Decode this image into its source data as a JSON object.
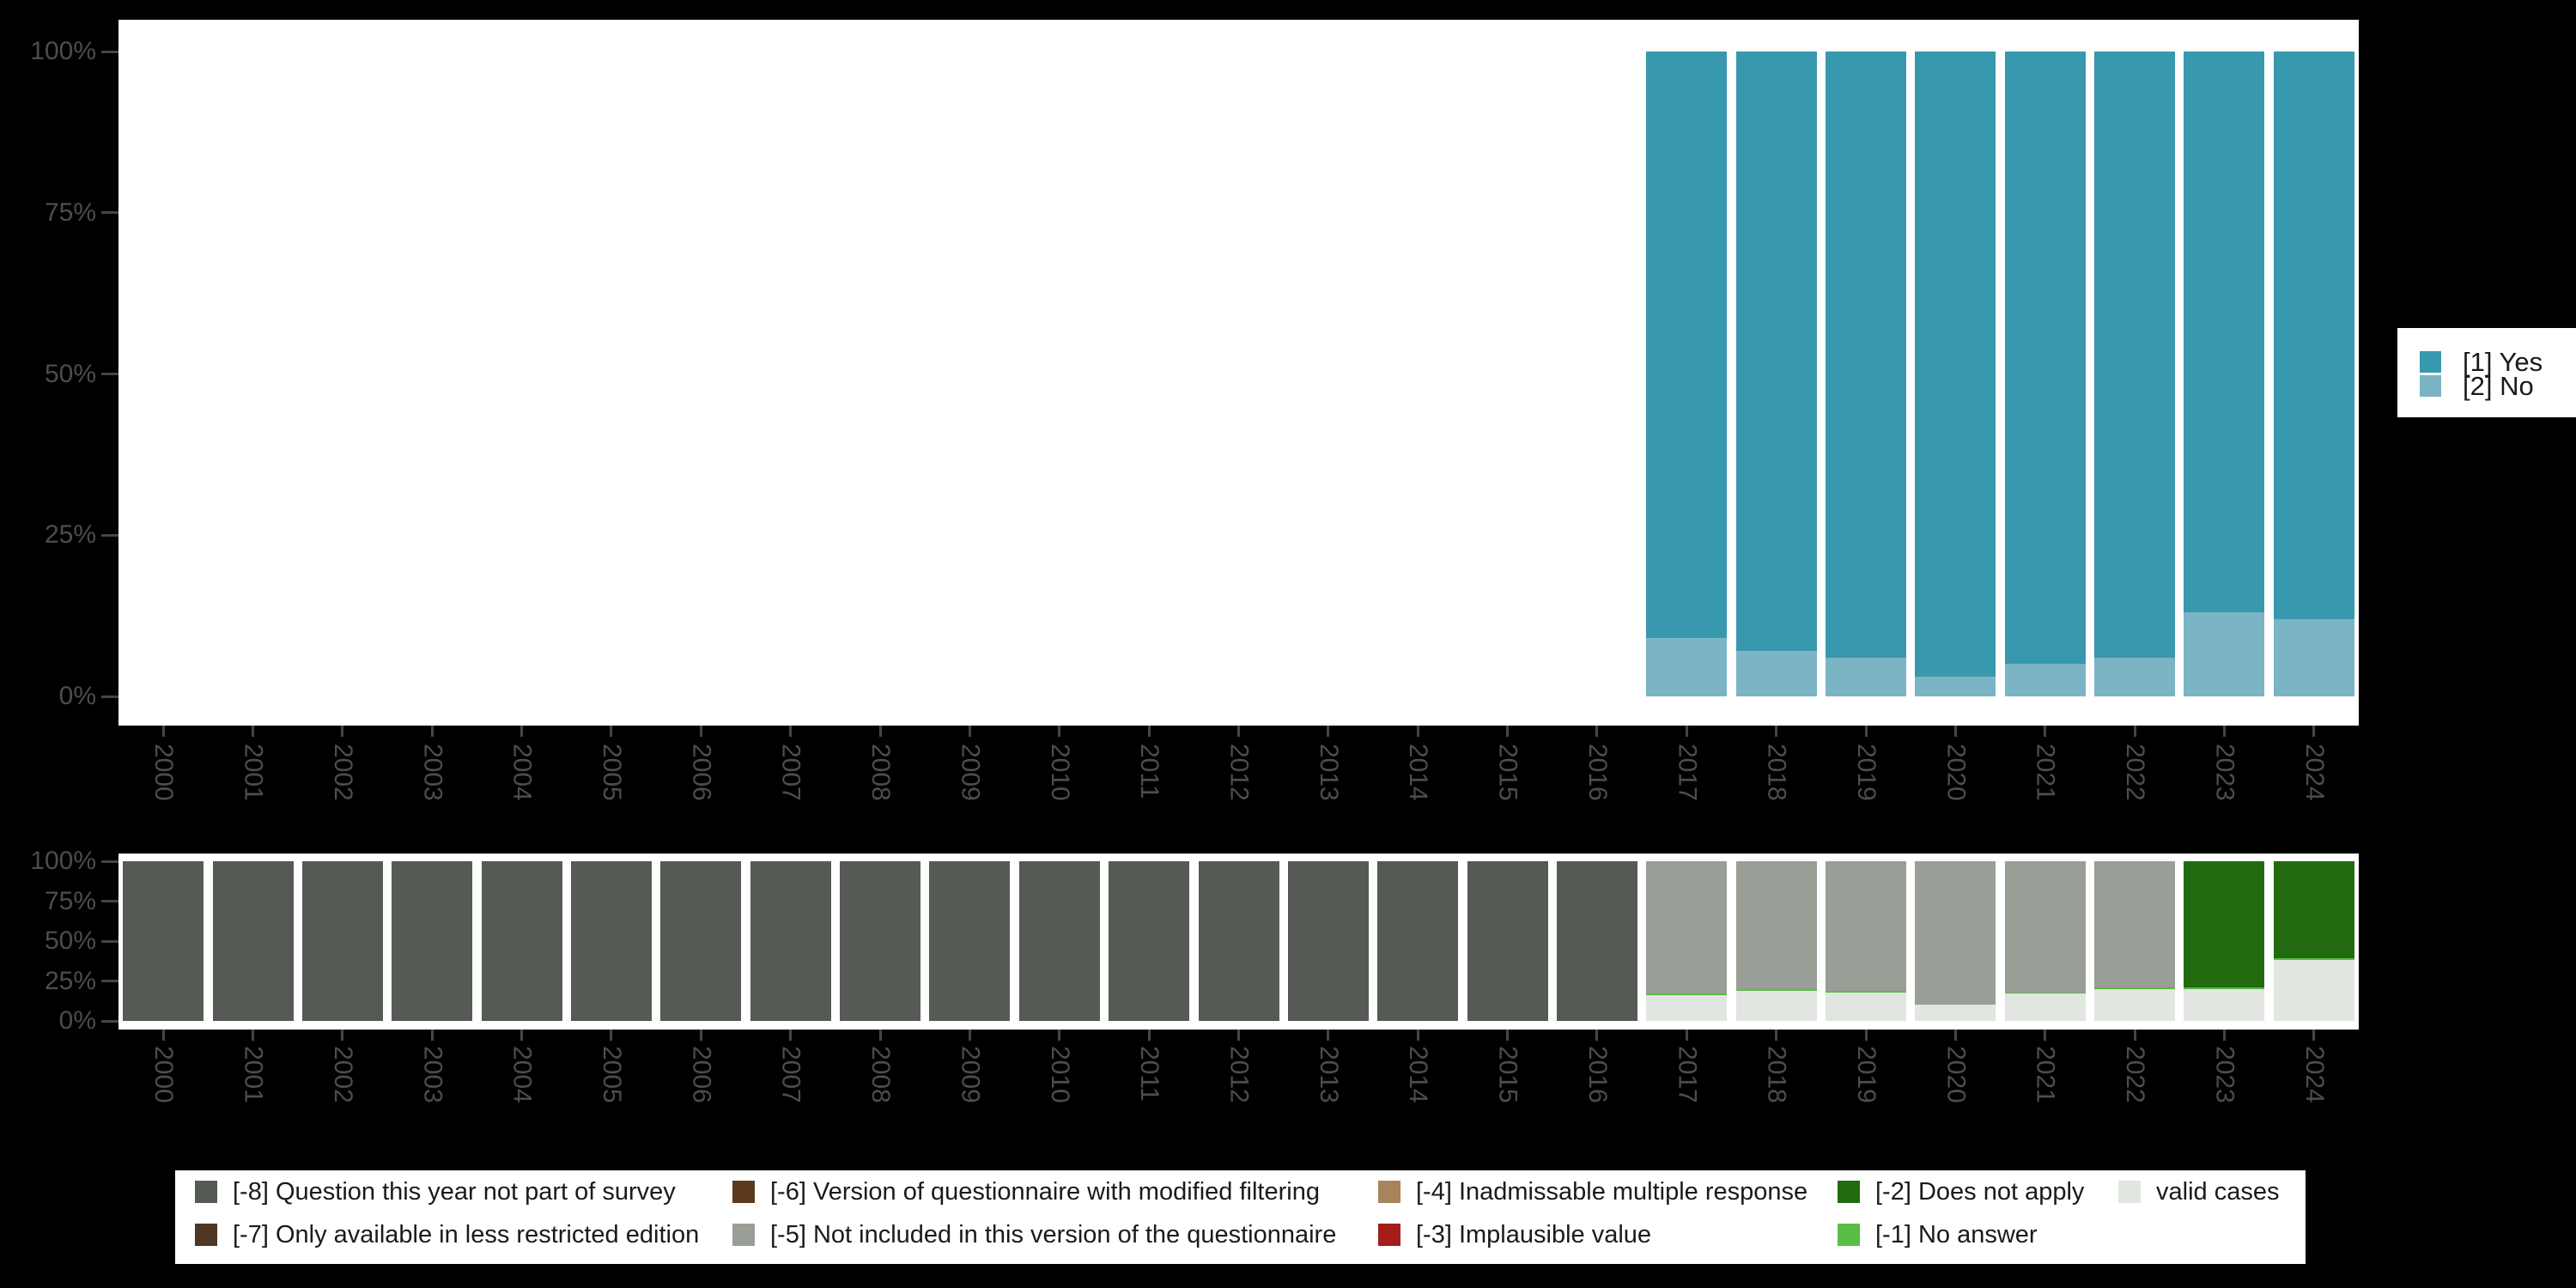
{
  "background_color": "#000000",
  "plot_background_color": "#FFFFFF",
  "axis_text_color": "#4D4D4D",
  "legend_text_color": "#1A1A1A",
  "chart_data": [
    {
      "type": "bar",
      "stacked": true,
      "percent": true,
      "title": "",
      "xlabel": "",
      "ylabel": "",
      "ylim": [
        0,
        100
      ],
      "grid": false,
      "x_tick_rotation": 90,
      "y_ticks": [
        {
          "value": 100,
          "label": "100%"
        },
        {
          "value": 75,
          "label": "75%"
        },
        {
          "value": 50,
          "label": "50%"
        },
        {
          "value": 25,
          "label": "25%"
        },
        {
          "value": 0,
          "label": "0%"
        }
      ],
      "categories": [
        "2000",
        "2001",
        "2002",
        "2003",
        "2004",
        "2005",
        "2006",
        "2007",
        "2008",
        "2009",
        "2010",
        "2011",
        "2012",
        "2013",
        "2014",
        "2015",
        "2016",
        "2017",
        "2018",
        "2019",
        "2020",
        "2021",
        "2022",
        "2023",
        "2024"
      ],
      "series": [
        {
          "name": "[1] Yes",
          "color": "#3898AD",
          "values": [
            null,
            null,
            null,
            null,
            null,
            null,
            null,
            null,
            null,
            null,
            null,
            null,
            null,
            null,
            null,
            null,
            null,
            91,
            93,
            94,
            97,
            95,
            94,
            87,
            88
          ]
        },
        {
          "name": "[2] No",
          "color": "#7AB4C5",
          "values": [
            null,
            null,
            null,
            null,
            null,
            null,
            null,
            null,
            null,
            null,
            null,
            null,
            null,
            null,
            null,
            null,
            null,
            9,
            7,
            6,
            3,
            5,
            6,
            13,
            12
          ]
        }
      ],
      "legend_position": "right"
    },
    {
      "type": "bar",
      "stacked": true,
      "percent": true,
      "title": "",
      "xlabel": "",
      "ylabel": "",
      "ylim": [
        0,
        100
      ],
      "grid": false,
      "x_tick_rotation": 90,
      "y_ticks": [
        {
          "value": 100,
          "label": "100%"
        },
        {
          "value": 75,
          "label": "75%"
        },
        {
          "value": 50,
          "label": "50%"
        },
        {
          "value": 25,
          "label": "25%"
        },
        {
          "value": 0,
          "label": "0%"
        }
      ],
      "categories": [
        "2000",
        "2001",
        "2002",
        "2003",
        "2004",
        "2005",
        "2006",
        "2007",
        "2008",
        "2009",
        "2010",
        "2011",
        "2012",
        "2013",
        "2014",
        "2015",
        "2016",
        "2017",
        "2018",
        "2019",
        "2020",
        "2021",
        "2022",
        "2023",
        "2024"
      ],
      "series": [
        {
          "name": "[-8] Question this year not part of survey",
          "color": "#555B54",
          "values": [
            100,
            100,
            100,
            100,
            100,
            100,
            100,
            100,
            100,
            100,
            100,
            100,
            100,
            100,
            100,
            100,
            100,
            0,
            0,
            0,
            0,
            0,
            0,
            0,
            0
          ]
        },
        {
          "name": "[-5] Not included in this version of the questionnaire",
          "color": "#999E97",
          "values": [
            0,
            0,
            0,
            0,
            0,
            0,
            0,
            0,
            0,
            0,
            0,
            0,
            0,
            0,
            0,
            0,
            0,
            83,
            80,
            81,
            90,
            82,
            79,
            0,
            0
          ]
        },
        {
          "name": "[-2] Does not apply",
          "color": "#226B10",
          "values": [
            0,
            0,
            0,
            0,
            0,
            0,
            0,
            0,
            0,
            0,
            0,
            0,
            0,
            0,
            0,
            0,
            0,
            0,
            0,
            0,
            0,
            0,
            0,
            79,
            61
          ]
        },
        {
          "name": "[-1] No answer",
          "color": "#5ABD44",
          "values": [
            0,
            0,
            0,
            0,
            0,
            0,
            0,
            0,
            0,
            0,
            0,
            0,
            0,
            0,
            0,
            0,
            0,
            1,
            1,
            1,
            0,
            1,
            1,
            1,
            1
          ]
        },
        {
          "name": "valid cases",
          "color": "#E1E6E0",
          "values": [
            0,
            0,
            0,
            0,
            0,
            0,
            0,
            0,
            0,
            0,
            0,
            0,
            0,
            0,
            0,
            0,
            0,
            16,
            19,
            18,
            10,
            17,
            20,
            20,
            38
          ]
        }
      ],
      "legend_position": "bottom"
    }
  ],
  "legend_right": {
    "items": [
      {
        "label": "[1] Yes",
        "color": "#3898AD"
      },
      {
        "label": "[2] No",
        "color": "#7AB4C5"
      }
    ]
  },
  "legend_bottom": {
    "columns": [
      [
        {
          "label": "[-8] Question this year not part of survey",
          "color": "#555B54"
        },
        {
          "label": "[-7] Only available in less restricted edition",
          "color": "#503723"
        }
      ],
      [
        {
          "label": "[-6] Version of questionnaire with modified filtering",
          "color": "#5E3A1D"
        },
        {
          "label": "[-5] Not included in this version of the questionnaire",
          "color": "#999E97"
        }
      ],
      [
        {
          "label": "[-4] Inadmissable multiple response",
          "color": "#A8835B"
        },
        {
          "label": "[-3] Implausible value",
          "color": "#A41D1B"
        }
      ],
      [
        {
          "label": "[-2] Does not apply",
          "color": "#226B10"
        },
        {
          "label": "[-1] No answer",
          "color": "#5ABD44"
        }
      ],
      [
        {
          "label": "valid cases",
          "color": "#E1E6E0"
        }
      ]
    ]
  }
}
